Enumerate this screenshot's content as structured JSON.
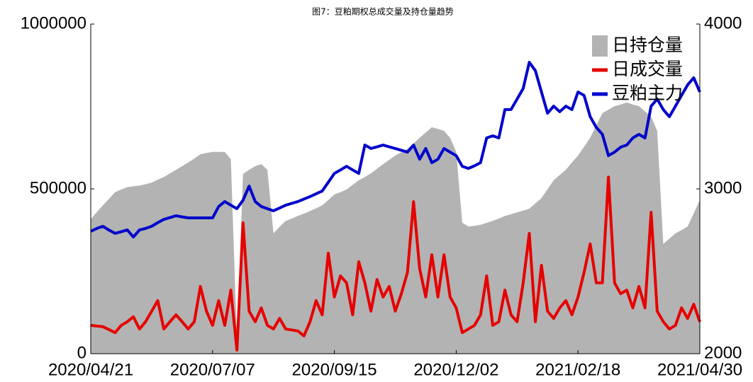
{
  "chart_data": {
    "type": "combo",
    "title": "图7：豆粕期权总成交量及持仓量趋势",
    "categories": [
      "2020/04/21",
      null,
      null,
      null,
      null,
      null,
      null,
      null,
      null,
      null,
      null,
      null,
      null,
      null,
      null,
      null,
      null,
      null,
      null,
      null,
      "2020/07/07",
      null,
      null,
      null,
      null,
      null,
      null,
      null,
      null,
      null,
      null,
      null,
      null,
      null,
      null,
      null,
      null,
      null,
      null,
      null,
      "2020/09/15",
      null,
      null,
      null,
      null,
      null,
      null,
      null,
      null,
      null,
      null,
      null,
      null,
      null,
      null,
      null,
      null,
      null,
      null,
      null,
      "2020/12/02",
      null,
      null,
      null,
      null,
      null,
      null,
      null,
      null,
      null,
      null,
      null,
      null,
      null,
      null,
      null,
      null,
      null,
      null,
      null,
      "2021/02/18",
      null,
      null,
      null,
      null,
      null,
      null,
      null,
      null,
      null,
      null,
      null,
      null,
      null,
      null,
      null,
      null,
      null,
      null,
      null,
      "2021/04/30"
    ],
    "series": [
      {
        "name": "日持仓量",
        "type": "area",
        "color": "#b3b3b3",
        "values": [
          408000,
          430000,
          450000,
          470000,
          490000,
          498000,
          505000,
          508000,
          510000,
          514000,
          519000,
          528000,
          536000,
          547000,
          558000,
          569000,
          580000,
          592000,
          605000,
          609000,
          612000,
          612000,
          612000,
          590000,
          40000,
          545000,
          558000,
          569000,
          575000,
          558000,
          365000,
          385000,
          403000,
          410000,
          418000,
          425000,
          433000,
          441000,
          450000,
          466000,
          483000,
          490000,
          498000,
          512000,
          526000,
          536000,
          547000,
          561000,
          575000,
          588000,
          601000,
          611000,
          622000,
          638000,
          655000,
          671000,
          687000,
          682000,
          676000,
          655000,
          612000,
          397000,
          386000,
          388000,
          391000,
          397000,
          403000,
          410000,
          418000,
          423000,
          429000,
          434000,
          440000,
          456000,
          472000,
          499000,
          526000,
          542000,
          558000,
          580000,
          601000,
          628000,
          655000,
          692000,
          730000,
          740000,
          751000,
          756000,
          762000,
          756000,
          751000,
          735000,
          719000,
          676000,
          333000,
          349000,
          365000,
          375000,
          386000,
          426000,
          466000
        ]
      },
      {
        "name": "日成交量",
        "type": "line",
        "color": "#e60000",
        "values": [
          86000,
          84000,
          82000,
          73000,
          64000,
          86000,
          97000,
          112000,
          75000,
          97000,
          129000,
          161000,
          75000,
          97000,
          118000,
          97000,
          75000,
          97000,
          204000,
          129000,
          86000,
          161000,
          86000,
          193000,
          11000,
          397000,
          129000,
          97000,
          139000,
          86000,
          75000,
          107000,
          75000,
          72000,
          69000,
          54000,
          97000,
          161000,
          118000,
          305000,
          172000,
          236000,
          215000,
          118000,
          279000,
          215000,
          129000,
          225000,
          172000,
          204000,
          129000,
          182000,
          247000,
          461000,
          258000,
          172000,
          300000,
          172000,
          300000,
          172000,
          139000,
          64000,
          75000,
          86000,
          118000,
          236000,
          86000,
          97000,
          193000,
          118000,
          97000,
          215000,
          365000,
          97000,
          268000,
          129000,
          107000,
          139000,
          161000,
          118000,
          172000,
          247000,
          333000,
          215000,
          215000,
          536000,
          215000,
          182000,
          193000,
          139000,
          204000,
          139000,
          429000,
          129000,
          97000,
          75000,
          86000,
          139000,
          107000,
          150000,
          97000
        ]
      },
      {
        "name": "豆粕主力",
        "type": "line",
        "axis": "y2",
        "color": "#0000cc",
        "values": [
          2743,
          2760,
          2773,
          2750,
          2730,
          2740,
          2751,
          2708,
          2751,
          2760,
          2773,
          2795,
          2815,
          2826,
          2837,
          2830,
          2824,
          2824,
          2824,
          2824,
          2824,
          2893,
          2923,
          2901,
          2880,
          2931,
          3017,
          2923,
          2893,
          2880,
          2867,
          2884,
          2901,
          2912,
          2923,
          2938,
          2953,
          2970,
          2987,
          3040,
          3094,
          3115,
          3137,
          3115,
          3094,
          3266,
          3245,
          3255,
          3266,
          3255,
          3245,
          3234,
          3223,
          3266,
          3180,
          3245,
          3159,
          3180,
          3245,
          3223,
          3202,
          3137,
          3124,
          3140,
          3159,
          3309,
          3322,
          3309,
          3481,
          3481,
          3545,
          3609,
          3768,
          3717,
          3588,
          3459,
          3502,
          3468,
          3502,
          3481,
          3588,
          3567,
          3438,
          3373,
          3331,
          3202,
          3223,
          3253,
          3266,
          3309,
          3331,
          3309,
          3502,
          3545,
          3481,
          3438,
          3502,
          3567,
          3631,
          3674,
          3588
        ]
      }
    ],
    "ylim": [
      0,
      1000000
    ],
    "yticks": [
      0,
      500000,
      1000000
    ],
    "y2lim": [
      2000,
      4000
    ],
    "y2ticks": [
      2000,
      3000,
      4000
    ],
    "legend": "upper right",
    "grid": false
  }
}
